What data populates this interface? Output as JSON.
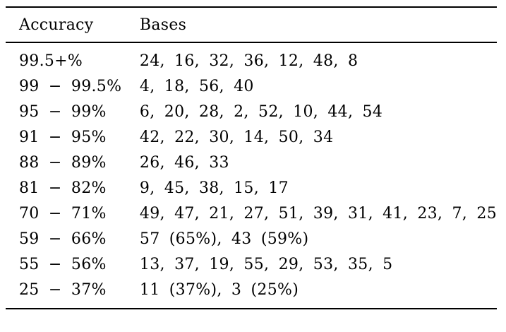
{
  "colors": {
    "background": "#ffffff",
    "text": "#000000",
    "rule": "#000000"
  },
  "table": {
    "columns": [
      "Accuracy",
      "Bases"
    ],
    "rows": [
      {
        "accuracy": "99.5+%",
        "bases": "24, 16, 32, 36, 12, 48, 8"
      },
      {
        "accuracy": "99 − 99.5%",
        "bases": "4, 18, 56, 40"
      },
      {
        "accuracy": "95 − 99%",
        "bases": "6, 20, 28, 2, 52, 10, 44, 54"
      },
      {
        "accuracy": "91 − 95%",
        "bases": "42, 22, 30, 14, 50, 34"
      },
      {
        "accuracy": "88 − 89%",
        "bases": "26, 46, 33"
      },
      {
        "accuracy": "81 − 82%",
        "bases": "9, 45, 38, 15, 17"
      },
      {
        "accuracy": "70 − 71%",
        "bases": "49, 47, 21, 27, 51, 39, 31, 41, 23, 7, 25"
      },
      {
        "accuracy": "59 − 66%",
        "bases": "57 (65%), 43 (59%)"
      },
      {
        "accuracy": "55 − 56%",
        "bases": "13, 37, 19, 55, 29, 53, 35, 5"
      },
      {
        "accuracy": "25 − 37%",
        "bases": "11 (37%), 3 (25%)"
      }
    ]
  }
}
